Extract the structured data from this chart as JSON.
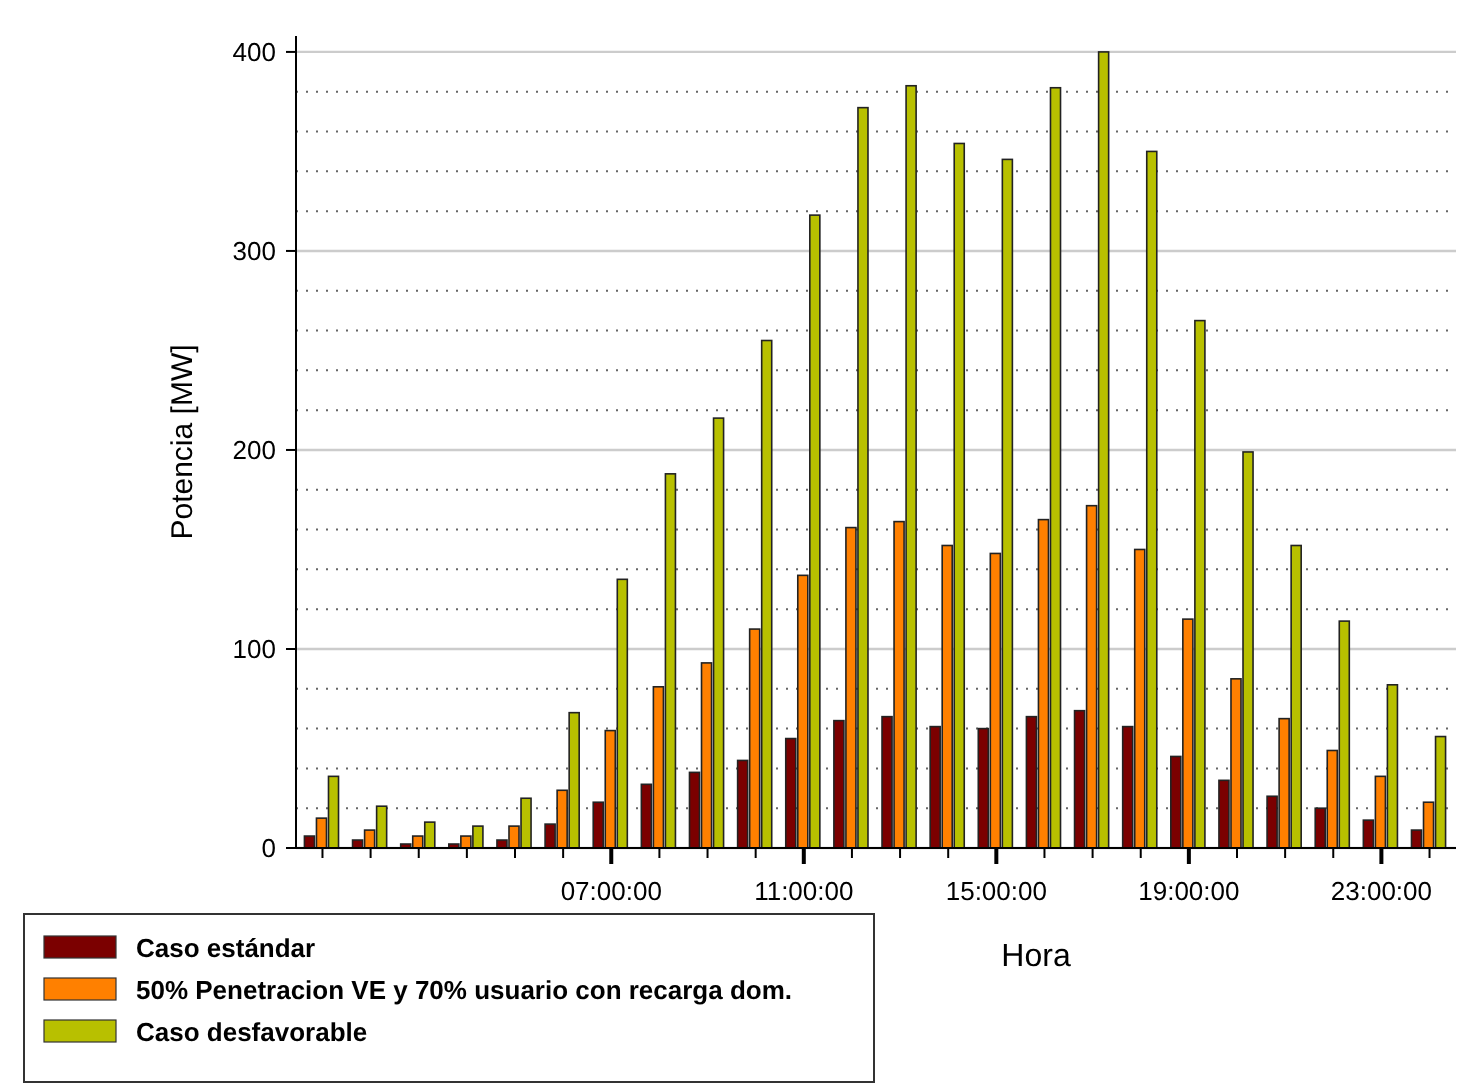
{
  "chart_data": {
    "type": "bar",
    "xlabel": "Hora",
    "ylabel": "Potencia [MW]",
    "categories": [
      null,
      null,
      null,
      null,
      null,
      null,
      "07:00:00",
      null,
      null,
      null,
      "11:00:00",
      null,
      null,
      null,
      "15:00:00",
      null,
      null,
      null,
      "19:00:00",
      null,
      null,
      null,
      "23:00:00",
      null
    ],
    "series": [
      {
        "name": "Caso estándar",
        "color": "#7b0000",
        "values": [
          6,
          4,
          2,
          2,
          4,
          12,
          23,
          32,
          38,
          44,
          55,
          64,
          66,
          61,
          60,
          66,
          69,
          61,
          46,
          34,
          26,
          20,
          14,
          9
        ]
      },
      {
        "name": "50% Penetracion VE y 70% usuario con recarga dom.",
        "color": "#ff8000",
        "values": [
          15,
          9,
          6,
          6,
          11,
          29,
          59,
          81,
          93,
          110,
          137,
          161,
          164,
          152,
          148,
          165,
          172,
          150,
          115,
          85,
          65,
          49,
          36,
          23
        ]
      },
      {
        "name": "Caso desfavorable",
        "color": "#b8c000",
        "values": [
          36,
          21,
          13,
          11,
          25,
          68,
          135,
          188,
          216,
          255,
          318,
          372,
          383,
          354,
          346,
          382,
          400,
          350,
          265,
          199,
          152,
          114,
          82,
          56
        ]
      }
    ],
    "ylim": [
      0,
      408
    ],
    "yticks": [
      0,
      {
        "value": 20,
        "label": null
      },
      {
        "value": 40,
        "label": null
      },
      {
        "value": 60,
        "label": null
      },
      {
        "value": 80,
        "label": null
      },
      100,
      {
        "value": 120,
        "label": null
      },
      {
        "value": 140,
        "label": null
      },
      {
        "value": 160,
        "label": null
      },
      {
        "value": 180,
        "label": null
      },
      200,
      {
        "value": 220,
        "label": null
      },
      {
        "value": 240,
        "label": null
      },
      {
        "value": 260,
        "label": null
      },
      {
        "value": 280,
        "label": null
      },
      300,
      {
        "value": 320,
        "label": null
      },
      {
        "value": 340,
        "label": null
      },
      {
        "value": 360,
        "label": null
      },
      {
        "value": 380,
        "label": null
      },
      400
    ],
    "grid": "y",
    "legend": "bottom left"
  }
}
